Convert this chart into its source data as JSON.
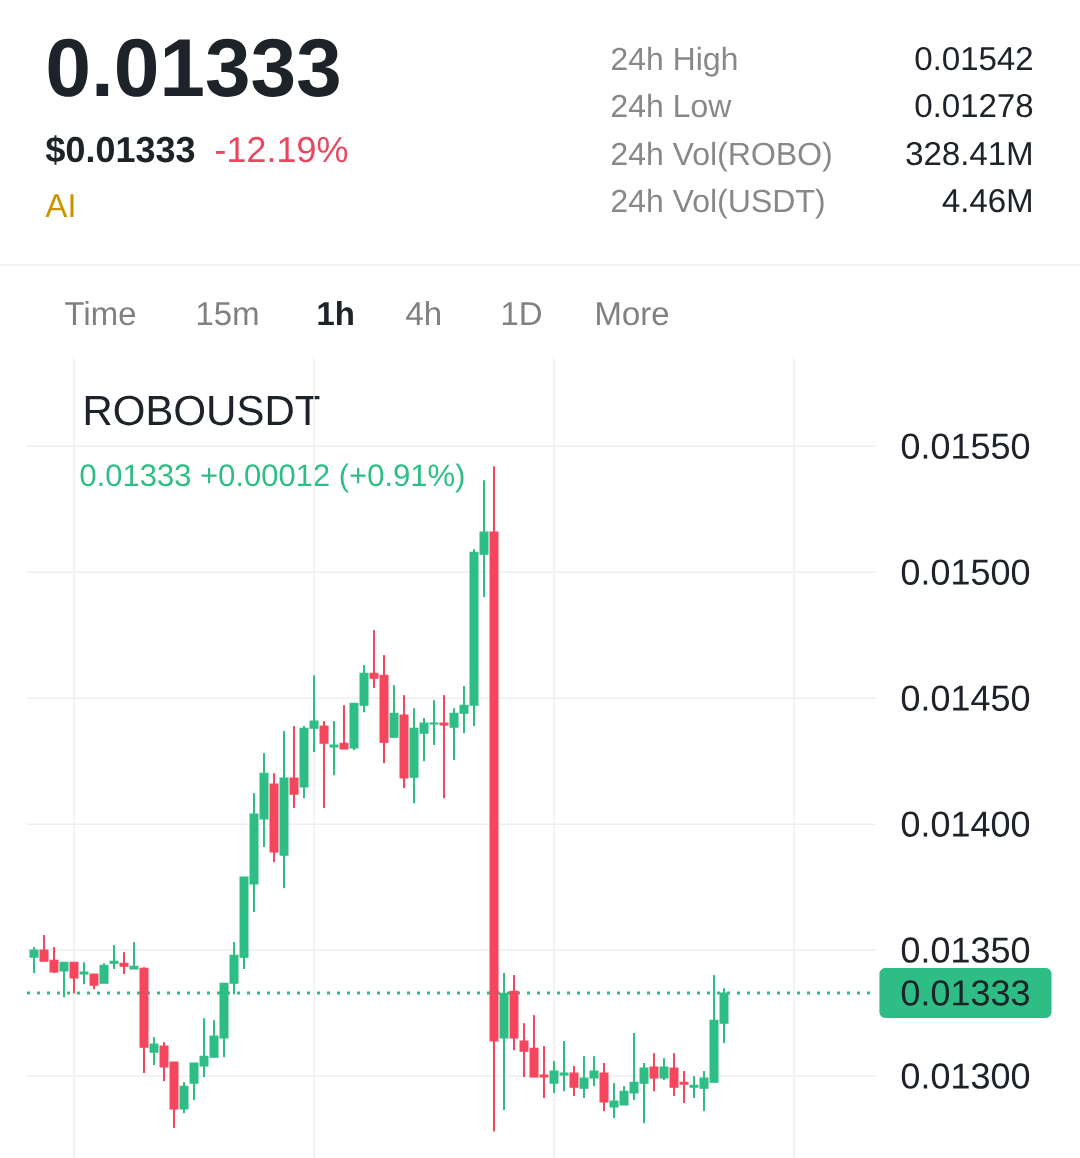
{
  "chart_data": {
    "type": "candlestick",
    "title": "ROBOUSDT",
    "subtitle": "0.01333  +0.00012 (+0.91%)",
    "annotations": [
      "0.01333",
      "$0.01333",
      "-12.19%",
      "AI",
      "24h High",
      "0.01542",
      "24h Low",
      "0.01278",
      "24h Vol(ROBO)",
      "328.41M",
      "24h Vol(USDT)",
      "4.46M",
      "Time",
      "15m",
      "1h",
      "4h",
      "1D",
      "More"
    ],
    "categories": [
      null,
      null,
      null,
      null,
      null,
      null,
      null,
      null,
      null,
      null,
      null,
      null,
      null,
      null,
      null,
      null,
      null,
      null,
      null,
      null,
      null,
      null,
      null,
      null,
      null,
      null,
      null,
      null,
      null,
      null,
      null,
      null,
      null,
      null,
      null,
      null,
      null,
      null,
      null,
      null,
      null,
      null,
      null,
      null,
      null,
      null,
      null,
      null,
      null,
      null,
      null,
      null,
      null,
      null,
      null,
      null,
      null,
      null,
      null,
      null,
      null,
      null,
      null,
      null,
      null,
      null,
      null,
      null,
      null,
      null
    ],
    "ohlc": [
      [
        0.013472,
        0.013512,
        0.013409,
        0.0135
      ],
      [
        0.0135,
        0.01356,
        0.013456,
        0.013456
      ],
      [
        0.01346,
        0.013512,
        0.013409,
        0.013413
      ],
      [
        0.013417,
        0.013452,
        0.013313,
        0.013452
      ],
      [
        0.013452,
        0.013452,
        0.013329,
        0.013389
      ],
      [
        0.013405,
        0.013452,
        0.013365,
        0.013413
      ],
      [
        0.013405,
        0.013405,
        0.013345,
        0.013361
      ],
      [
        0.013369,
        0.013448,
        0.013369,
        0.01344
      ],
      [
        0.013448,
        0.01352,
        0.013425,
        0.013456
      ],
      [
        0.013448,
        0.013492,
        0.013405,
        0.013436
      ],
      [
        0.013425,
        0.013532,
        0.013425,
        0.013436
      ],
      [
        0.013428,
        0.013432,
        0.013012,
        0.013115
      ],
      [
        0.013095,
        0.013155,
        0.013044,
        0.013127
      ],
      [
        0.013119,
        0.013135,
        0.01298,
        0.013036
      ],
      [
        0.013056,
        0.013056,
        0.012794,
        0.012869
      ],
      [
        0.012869,
        0.012976,
        0.012853,
        0.01296
      ],
      [
        0.012972,
        0.013052,
        0.012905,
        0.013052
      ],
      [
        0.01304,
        0.01323,
        0.012996,
        0.013079
      ],
      [
        0.013075,
        0.013222,
        0.013075,
        0.013159
      ],
      [
        0.013151,
        0.013369,
        0.013075,
        0.013369
      ],
      [
        0.013369,
        0.013532,
        0.013325,
        0.01348
      ],
      [
        0.013472,
        0.01379,
        0.013425,
        0.01379
      ],
      [
        0.013762,
        0.014123,
        0.013651,
        0.01404
      ],
      [
        0.01402,
        0.014282,
        0.013909,
        0.014202
      ],
      [
        0.014159,
        0.014202,
        0.013849,
        0.013889
      ],
      [
        0.013877,
        0.014369,
        0.013746,
        0.014183
      ],
      [
        0.014183,
        0.014389,
        0.014064,
        0.014119
      ],
      [
        0.014147,
        0.014389,
        0.014103,
        0.014381
      ],
      [
        0.014381,
        0.014591,
        0.014286,
        0.014409
      ],
      [
        0.014389,
        0.014409,
        0.014064,
        0.014321
      ],
      [
        0.014306,
        0.014409,
        0.014194,
        0.014314
      ],
      [
        0.014321,
        0.014472,
        0.014298,
        0.014298
      ],
      [
        0.014302,
        0.01448,
        0.014294,
        0.01448
      ],
      [
        0.014472,
        0.014631,
        0.014444,
        0.014599
      ],
      [
        0.014599,
        0.01477,
        0.01454,
        0.014579
      ],
      [
        0.014591,
        0.014671,
        0.014242,
        0.014325
      ],
      [
        0.014345,
        0.014552,
        0.014345,
        0.01444
      ],
      [
        0.014433,
        0.014512,
        0.014143,
        0.014183
      ],
      [
        0.014186,
        0.01446,
        0.014083,
        0.014381
      ],
      [
        0.014361,
        0.014421,
        0.01425,
        0.014401
      ],
      [
        0.014397,
        0.014492,
        0.014314,
        0.014401
      ],
      [
        0.014401,
        0.014512,
        0.014103,
        0.014393
      ],
      [
        0.014385,
        0.01446,
        0.014254,
        0.01444
      ],
      [
        0.01444,
        0.014548,
        0.014361,
        0.014472
      ],
      [
        0.014472,
        0.015091,
        0.014389,
        0.015079
      ],
      [
        0.015071,
        0.015365,
        0.014901,
        0.015159
      ],
      [
        0.015159,
        0.01542,
        0.01278,
        0.013139
      ],
      [
        0.013151,
        0.013409,
        0.012865,
        0.013329
      ],
      [
        0.013337,
        0.013401,
        0.013103,
        0.013151
      ],
      [
        0.013139,
        0.01321,
        0.012996,
        0.013099
      ],
      [
        0.013111,
        0.013242,
        0.012996,
        0.012996
      ],
      [
        0.013004,
        0.013119,
        0.012913,
        0.012996
      ],
      [
        0.012972,
        0.01306,
        0.012933,
        0.01302
      ],
      [
        0.013004,
        0.013139,
        0.01294,
        0.013012
      ],
      [
        0.013012,
        0.01304,
        0.012921,
        0.012956
      ],
      [
        0.012952,
        0.013079,
        0.012913,
        0.012992
      ],
      [
        0.012992,
        0.013079,
        0.01296,
        0.01302
      ],
      [
        0.013012,
        0.013052,
        0.012861,
        0.012897
      ],
      [
        0.012877,
        0.012972,
        0.012833,
        0.012901
      ],
      [
        0.012885,
        0.01296,
        0.012885,
        0.01294
      ],
      [
        0.012933,
        0.013171,
        0.012905,
        0.012976
      ],
      [
        0.012972,
        0.013052,
        0.012813,
        0.013032
      ],
      [
        0.013036,
        0.013091,
        0.01294,
        0.012992
      ],
      [
        0.012992,
        0.013071,
        0.012984,
        0.013036
      ],
      [
        0.013032,
        0.013091,
        0.012921,
        0.012956
      ],
      [
        0.012976,
        0.01302,
        0.012893,
        0.012968
      ],
      [
        0.012956,
        0.013,
        0.012913,
        0.012964
      ],
      [
        0.012952,
        0.01302,
        0.012861,
        0.012992
      ],
      [
        0.012976,
        0.013401,
        0.012976,
        0.013222
      ],
      [
        0.01321,
        0.013349,
        0.013131,
        0.01333
      ]
    ],
    "colors": [
      "#2ebd85",
      "#f6465d",
      "#f6465d",
      "#2ebd85",
      "#f6465d",
      "#2ebd85",
      "#f6465d",
      "#2ebd85",
      "#2ebd85",
      "#f6465d",
      "#2ebd85",
      "#f6465d",
      "#2ebd85",
      "#f6465d",
      "#f6465d",
      "#2ebd85",
      "#2ebd85",
      "#2ebd85",
      "#2ebd85",
      "#2ebd85",
      "#2ebd85",
      "#2ebd85",
      "#2ebd85",
      "#2ebd85",
      "#f6465d",
      "#2ebd85",
      "#f6465d",
      "#2ebd85",
      "#2ebd85",
      "#f6465d",
      "#2ebd85",
      "#f6465d",
      "#2ebd85",
      "#2ebd85",
      "#f6465d",
      "#f6465d",
      "#2ebd85",
      "#f6465d",
      "#2ebd85",
      "#2ebd85",
      "#2ebd85",
      "#f6465d",
      "#2ebd85",
      "#2ebd85",
      "#2ebd85",
      "#2ebd85",
      "#f6465d",
      "#2ebd85",
      "#f6465d",
      "#f6465d",
      "#f6465d",
      "#f6465d",
      "#2ebd85",
      "#2ebd85",
      "#f6465d",
      "#2ebd85",
      "#2ebd85",
      "#f6465d",
      "#2ebd85",
      "#2ebd85",
      "#2ebd85",
      "#2ebd85",
      "#f6465d",
      "#2ebd85",
      "#f6465d",
      "#f6465d",
      "#2ebd85",
      "#2ebd85",
      "#2ebd85",
      "#2ebd85"
    ],
    "ylim": [
      0.012675,
      0.01585
    ],
    "yticks": [
      {
        "value": 0.013,
        "label": "0.01300"
      },
      {
        "value": 0.0135,
        "label": "0.01350"
      },
      {
        "value": 0.014,
        "label": "0.01400"
      },
      {
        "value": 0.0145,
        "label": "0.01450"
      },
      {
        "value": 0.015,
        "label": "0.01500"
      },
      {
        "value": 0.0155,
        "label": "0.01550"
      }
    ],
    "tick_labels": "y",
    "grid": true,
    "ref_lines": [
      {
        "axis": "y",
        "value": 0.01333,
        "label": "0.01333",
        "color": "#2ebd85",
        "line_style": "dotted"
      }
    ]
  }
}
